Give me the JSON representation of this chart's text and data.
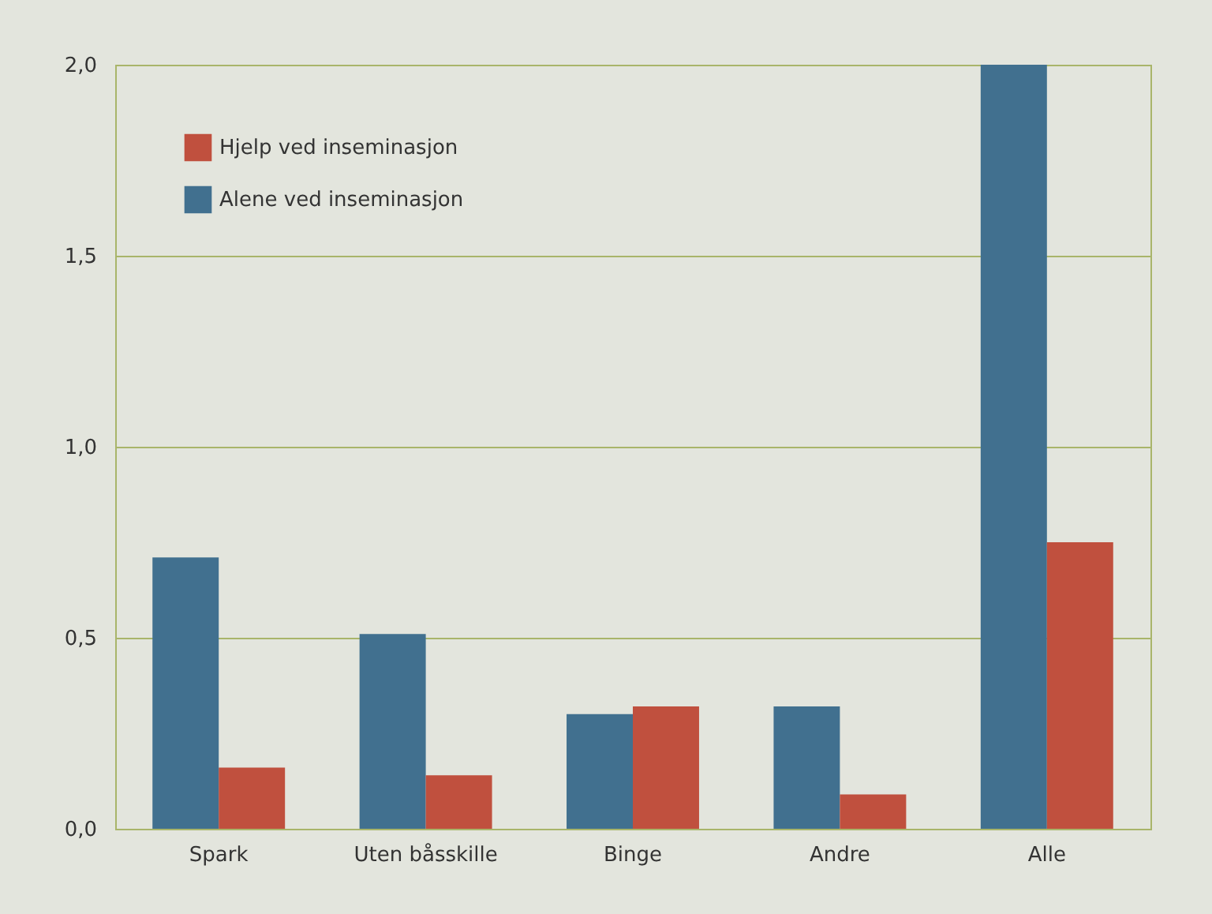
{
  "chart_data": {
    "type": "bar",
    "categories": [
      "Spark",
      "Uten båsskille",
      "Binge",
      "Andre",
      "Alle"
    ],
    "series": [
      {
        "name": "Alene ved inseminasjon",
        "color": "#41708f",
        "values": [
          0.71,
          0.51,
          0.3,
          0.32,
          2.0
        ]
      },
      {
        "name": "Hjelp ved inseminasjon",
        "color": "#c0503e",
        "values": [
          0.16,
          0.14,
          0.32,
          0.09,
          0.75
        ]
      }
    ],
    "ylim": [
      0,
      2.0
    ],
    "yticks": [
      {
        "value": 0,
        "label": "0,0"
      },
      {
        "value": 0.5,
        "label": "0,5"
      },
      {
        "value": 1.0,
        "label": "1,0"
      },
      {
        "value": 1.5,
        "label": "1,5"
      },
      {
        "value": 2.0,
        "label": "2,0"
      }
    ],
    "grid": "y",
    "legend": "top left"
  }
}
